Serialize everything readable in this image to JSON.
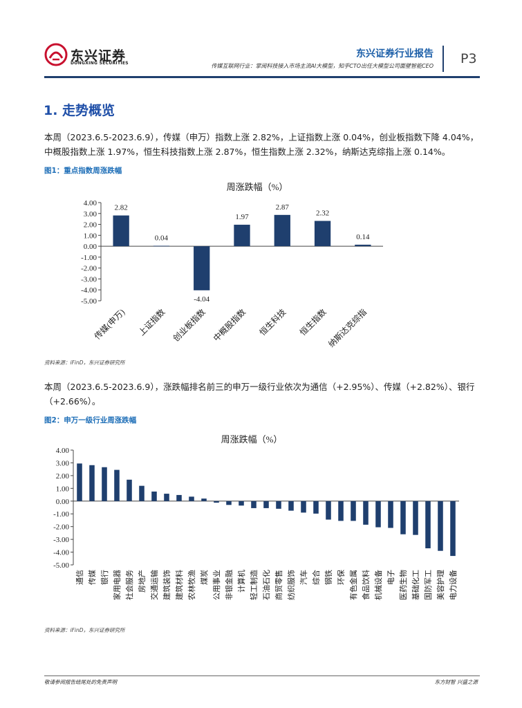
{
  "header": {
    "company_cn": "东兴证券",
    "company_en": "DONGXING SECURITIES",
    "report_type": "东兴证券行业报告",
    "subtitle": "传媒互联网行业：掌阅科技接入市场主流AI大模型，知乎CTO出任大模型公司面壁智能CEO",
    "page": "P3"
  },
  "section": {
    "title": "1. 走势概览"
  },
  "paragraphs": {
    "p1": "本周（2023.6.5-2023.6.9），传媒（申万）指数上涨 2.82%，上证指数上涨 0.04%，创业板指数下降 4.04%，中概股指数上涨 1.97%，恒生科技指数上涨 2.87%，恒生指数上涨 2.32%，纳斯达克综指上涨 0.14%。",
    "p2": "本周（2023.6.5-2023.6.9），涨跌幅排名前三的申万一级行业依次为通信（+2.95%）、传媒（+2.82%）、银行（+2.66%）。"
  },
  "figures": {
    "fig1": {
      "title": "图1：重点指数周涨跌幅",
      "source": "资料来源：iFinD，东兴证券研究所"
    },
    "fig2": {
      "title": "图2：申万一级行业周涨跌幅",
      "source": "资料来源：iFinD，东兴证券研究所"
    }
  },
  "colors": {
    "bar": "#1f3f6e",
    "accent": "#1f4fa8",
    "logo_red": "#c8102e"
  },
  "icons": {
    "logo": "dongxing-logo-icon"
  },
  "chart_data": [
    {
      "type": "bar",
      "title": "周涨跌幅（%）",
      "categories": [
        "传媒(申万)",
        "上证指数",
        "创业板指数",
        "中概股指数",
        "恒生科技",
        "恒生指数",
        "纳斯达克综指"
      ],
      "values": [
        2.82,
        0.04,
        -4.04,
        1.97,
        2.87,
        2.32,
        0.14
      ],
      "value_labels": [
        "2.82",
        "0.04",
        "-4.04",
        "1.97",
        "2.87",
        "2.32",
        "0.14"
      ],
      "ylim": [
        -5,
        4
      ],
      "yticks": [
        "4.00",
        "3.00",
        "2.00",
        "1.00",
        "0.00",
        "-1.00",
        "-2.00",
        "-3.00",
        "-4.00",
        "-5.00"
      ],
      "grid": false,
      "legend": "none"
    },
    {
      "type": "bar",
      "title": "周涨跌幅（%）",
      "categories": [
        "通信",
        "传媒",
        "银行",
        "家用电器",
        "社会服务",
        "房地产",
        "交通运输",
        "建筑装饰",
        "建筑材料",
        "农林牧渔",
        "煤炭",
        "公用事业",
        "非银金融",
        "计算机",
        "轻工制造",
        "石油石化",
        "商贸零售",
        "纺织服饰",
        "汽车",
        "综合",
        "钢铁",
        "环保",
        "有色金属",
        "食品饮料",
        "机械设备",
        "电子",
        "医药生物",
        "基础化工",
        "国防军工",
        "美容护理",
        "电力设备"
      ],
      "values": [
        2.95,
        2.82,
        2.66,
        2.45,
        1.68,
        1.2,
        0.75,
        0.58,
        0.48,
        0.35,
        0.2,
        -0.12,
        -0.3,
        -0.35,
        -0.55,
        -0.55,
        -0.6,
        -0.75,
        -0.9,
        -0.98,
        -1.45,
        -1.55,
        -1.55,
        -1.85,
        -2.05,
        -2.1,
        -2.6,
        -2.65,
        -3.7,
        -3.9,
        -4.3
      ],
      "ylim": [
        -5,
        4
      ],
      "yticks": [
        "4.00",
        "3.00",
        "2.00",
        "1.00",
        "0.00",
        "-1.00",
        "-2.00",
        "-3.00",
        "-4.00",
        "-5.00"
      ],
      "grid": false,
      "legend": "none"
    }
  ],
  "footer": {
    "left": "敬请参阅报告结尾处的免责声明",
    "right": "东方财智  兴盛之源"
  }
}
